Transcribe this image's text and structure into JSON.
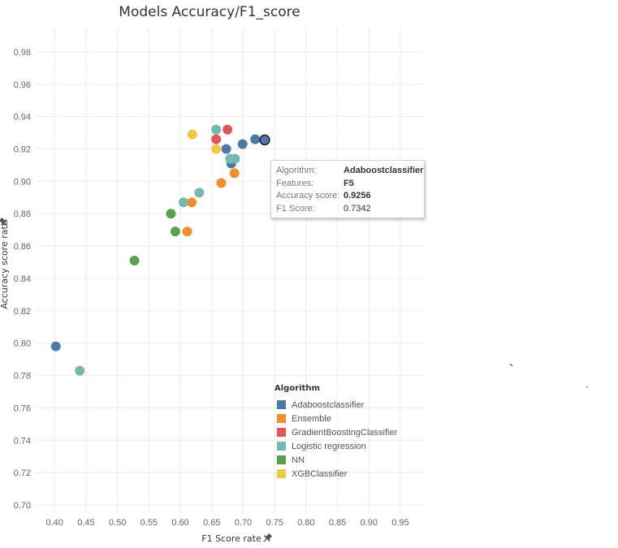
{
  "chart_data": {
    "type": "scatter",
    "title": "Models Accuracy/F1_score",
    "xlabel": "F1 Score rate",
    "ylabel": "Accuracy score rate",
    "xlim": [
      0.37,
      0.99
    ],
    "ylim": [
      0.695,
      0.995
    ],
    "x_ticks": [
      "0.40",
      "0.45",
      "0.50",
      "0.55",
      "0.60",
      "0.65",
      "0.70",
      "0.75",
      "0.80",
      "0.85",
      "0.90",
      "0.95"
    ],
    "y_ticks": [
      "0.70",
      "0.72",
      "0.74",
      "0.76",
      "0.78",
      "0.80",
      "0.82",
      "0.84",
      "0.86",
      "0.88",
      "0.90",
      "0.92",
      "0.94",
      "0.96",
      "0.98"
    ],
    "grid": true,
    "legend_position": "bottom-right",
    "legend_title": "Algorithm",
    "series": [
      {
        "name": "Adaboostclassifier",
        "color": "#4e79a7",
        "points": [
          [
            0.402,
            0.798
          ],
          [
            0.673,
            0.92
          ],
          [
            0.681,
            0.911
          ],
          [
            0.699,
            0.923
          ],
          [
            0.719,
            0.926
          ],
          [
            0.7342,
            0.9256
          ]
        ]
      },
      {
        "name": "Ensemble",
        "color": "#f28e2b",
        "points": [
          [
            0.611,
            0.869
          ],
          [
            0.618,
            0.887
          ],
          [
            0.665,
            0.899
          ],
          [
            0.686,
            0.905
          ]
        ]
      },
      {
        "name": "GradientBoostingClassifier",
        "color": "#e15759",
        "points": [
          [
            0.657,
            0.926
          ],
          [
            0.675,
            0.932
          ]
        ]
      },
      {
        "name": "Logistic regression",
        "color": "#76b7b2",
        "points": [
          [
            0.44,
            0.783
          ],
          [
            0.605,
            0.887
          ],
          [
            0.63,
            0.893
          ],
          [
            0.657,
            0.932
          ],
          [
            0.679,
            0.914
          ],
          [
            0.687,
            0.914
          ]
        ]
      },
      {
        "name": "NN",
        "color": "#59a14f",
        "points": [
          [
            0.527,
            0.851
          ],
          [
            0.585,
            0.88
          ],
          [
            0.592,
            0.869
          ]
        ]
      },
      {
        "name": "XGBClassifier",
        "color": "#edc948",
        "points": [
          [
            0.619,
            0.929
          ],
          [
            0.657,
            0.92
          ]
        ]
      }
    ],
    "highlighted_point": {
      "series": "Adaboostclassifier",
      "x": 0.7342,
      "y": 0.9256
    }
  },
  "tooltip": {
    "rows": [
      {
        "key": "Algorithm:",
        "value": "Adaboostclassifier"
      },
      {
        "key": "Features:",
        "value": "F5"
      },
      {
        "key": "Accuracy score:",
        "value": "0.9256"
      },
      {
        "key": "F1 Score:",
        "value": "0.7342"
      }
    ]
  },
  "icons": {
    "x_axis": "pin-icon",
    "y_axis": "pin-icon"
  }
}
